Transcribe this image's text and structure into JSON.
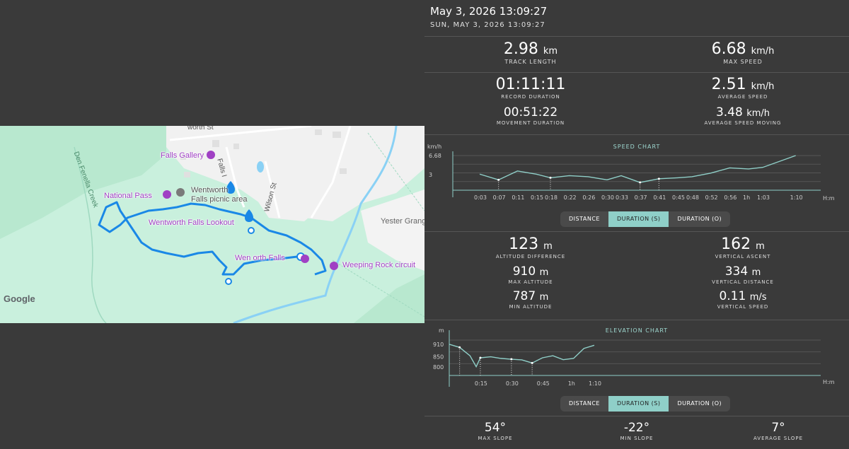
{
  "map": {
    "labels": {
      "street_top": "worth St",
      "falls_gallery": "Falls Gallery",
      "falls_road": "Falls I",
      "national_pass": "National Pass",
      "wentworth_falls_picnic": "Wentworth",
      "picnic_area": "Falls picnic area",
      "wilson_st": "Wilson St",
      "lookout": "Wentworth Falls Lookout",
      "wentworth_falls": "Wen  orth Falls",
      "weeping_rock": "Weeping Rock circuit",
      "yester_grange": "Yester Grang",
      "den_fenella": "Den Fenella Creek",
      "google": "Google"
    }
  },
  "header": {
    "title": "May 3, 2026 13:09:27",
    "subtitle": "SUN, MAY 3, 2026 13:09:27"
  },
  "stats_top": {
    "track_length": {
      "value": "2.98",
      "unit": "km",
      "label": "TRACK LENGTH"
    },
    "max_speed": {
      "value": "6.68",
      "unit": "km/h",
      "label": "MAX SPEED"
    },
    "record_duration": {
      "value": "01:11:11",
      "label": "RECORD DURATION"
    },
    "average_speed": {
      "value": "2.51",
      "unit": "km/h",
      "label": "AVERAGE SPEED"
    },
    "movement_duration": {
      "value": "00:51:22",
      "label": "MOVEMENT DURATION"
    },
    "average_speed_moving": {
      "value": "3.48",
      "unit": "km/h",
      "label": "AVERAGE SPEED MOVING"
    }
  },
  "speed_chart": {
    "title": "SPEED CHART",
    "y_unit": "km/h",
    "x_unit": "H:m",
    "y_ticks": [
      "6.68",
      "3"
    ],
    "x_ticks": [
      "0:03",
      "0:07",
      "0:11",
      "0:15",
      "0:18",
      "0:22",
      "0:26",
      "0:30",
      "0:33",
      "0:37",
      "0:41",
      "0:45",
      "0:48",
      "0:52",
      "0:56",
      "1h",
      "1:03",
      "1:10"
    ]
  },
  "speed_toggle": {
    "options": [
      "DISTANCE",
      "DURATION (S)",
      "DURATION (O)"
    ],
    "selected": "DURATION (S)"
  },
  "stats_mid": {
    "altitude_difference": {
      "value": "123",
      "unit": "m",
      "label": "ALTITUDE DIFFERENCE"
    },
    "vertical_ascent": {
      "value": "162",
      "unit": "m",
      "label": "VERTICAL ASCENT"
    },
    "max_altitude": {
      "value": "910",
      "unit": "m",
      "label": "MAX ALTITUDE"
    },
    "vertical_distance": {
      "value": "334",
      "unit": "m",
      "label": "VERTICAL DISTANCE"
    },
    "min_altitude": {
      "value": "787",
      "unit": "m",
      "label": "MIN ALTITUDE"
    },
    "vertical_speed": {
      "value": "0.11",
      "unit": "m/s",
      "label": "VERTICAL SPEED"
    }
  },
  "elevation_chart": {
    "title": "ELEVATION CHART",
    "y_unit": "m",
    "x_unit": "H:m",
    "y_ticks": [
      "910",
      "850",
      "800"
    ],
    "x_ticks": [
      "0:15",
      "0:30",
      "0:45",
      "1h",
      "1:10"
    ]
  },
  "elevation_toggle": {
    "options": [
      "DISTANCE",
      "DURATION (S)",
      "DURATION (O)"
    ],
    "selected": "DURATION (S)"
  },
  "stats_bottom": {
    "max_slope": {
      "value": "54°",
      "label": "MAX SLOPE"
    },
    "min_slope": {
      "value": "-22°",
      "label": "MIN SLOPE"
    },
    "average_slope": {
      "value": "7°",
      "label": "AVERAGE SLOPE"
    }
  },
  "colors": {
    "accent": "#8fcfc8",
    "track": "#1a88e6",
    "map_green": "#c9f0dd",
    "panel_bg": "#3a3a3a"
  },
  "chart_data": [
    {
      "type": "line",
      "title": "SPEED CHART",
      "xlabel": "H:m",
      "ylabel": "km/h",
      "x": [
        3,
        7,
        11,
        15,
        18,
        22,
        26,
        30,
        33,
        37,
        41,
        45,
        48,
        52,
        56,
        60,
        63,
        70
      ],
      "values": [
        3.1,
        2.0,
        3.7,
        3.1,
        2.4,
        2.8,
        2.6,
        2.0,
        2.8,
        1.5,
        2.2,
        2.4,
        2.6,
        3.3,
        4.3,
        4.1,
        4.4,
        6.68
      ],
      "ylim": [
        0,
        6.68
      ]
    },
    {
      "type": "line",
      "title": "ELEVATION CHART",
      "xlabel": "H:m",
      "ylabel": "m",
      "x": [
        0,
        5,
        10,
        13,
        15,
        20,
        25,
        30,
        35,
        40,
        45,
        50,
        55,
        60,
        65,
        70
      ],
      "values": [
        910,
        895,
        855,
        802,
        845,
        850,
        842,
        838,
        835,
        820,
        845,
        855,
        836,
        842,
        890,
        905
      ],
      "ylim": [
        760,
        930
      ]
    }
  ]
}
